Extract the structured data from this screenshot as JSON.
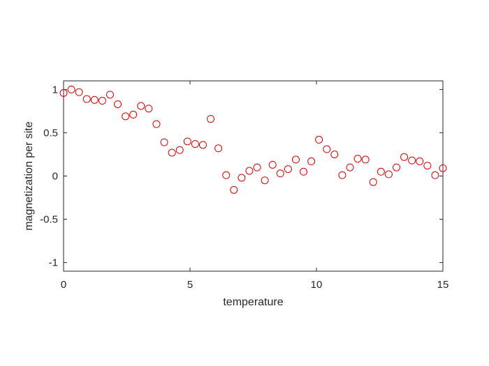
{
  "chart_data": {
    "type": "scatter",
    "xlabel": "temperature",
    "ylabel": "magnetization per site",
    "xlim": [
      0,
      15
    ],
    "ylim": [
      -1.1,
      1.1
    ],
    "x_ticks": [
      0,
      5,
      10,
      15
    ],
    "x_tick_labels": [
      "0",
      "5",
      "10",
      "15"
    ],
    "y_ticks": [
      1,
      0.5,
      0,
      -0.5,
      -1
    ],
    "y_tick_labels": [
      "1",
      "0.5",
      "0",
      "-0.5",
      "-1"
    ],
    "grid": false,
    "marker": "open-circle",
    "marker_color": "#d40000",
    "series": [
      {
        "x": [
          0,
          0.306,
          0.612,
          0.918,
          1.224,
          1.531,
          1.837,
          2.143,
          2.449,
          2.755,
          3.061,
          3.367,
          3.673,
          3.98,
          4.286,
          4.592,
          4.898,
          5.204,
          5.51,
          5.816,
          6.122,
          6.429,
          6.735,
          7.041,
          7.347,
          7.653,
          7.959,
          8.265,
          8.571,
          8.878,
          9.184,
          9.49,
          9.796,
          10.102,
          10.408,
          10.714,
          11.02,
          11.327,
          11.633,
          11.939,
          12.245,
          12.551,
          12.857,
          13.163,
          13.469,
          13.776,
          14.082,
          14.388,
          14.694,
          15.0
        ],
        "y": [
          0.96,
          1.0,
          0.97,
          0.89,
          0.88,
          0.87,
          0.94,
          0.83,
          0.69,
          0.71,
          0.81,
          0.78,
          0.6,
          0.39,
          0.27,
          0.3,
          0.4,
          0.37,
          0.36,
          0.66,
          0.32,
          0.01,
          -0.16,
          -0.02,
          0.06,
          0.1,
          -0.05,
          0.13,
          0.03,
          0.08,
          0.19,
          0.05,
          0.17,
          0.42,
          0.31,
          0.25,
          0.01,
          0.1,
          0.2,
          0.19,
          -0.07,
          0.05,
          0.02,
          0.1,
          0.22,
          0.18,
          0.17,
          0.12,
          0.01,
          0.09
        ]
      }
    ]
  }
}
